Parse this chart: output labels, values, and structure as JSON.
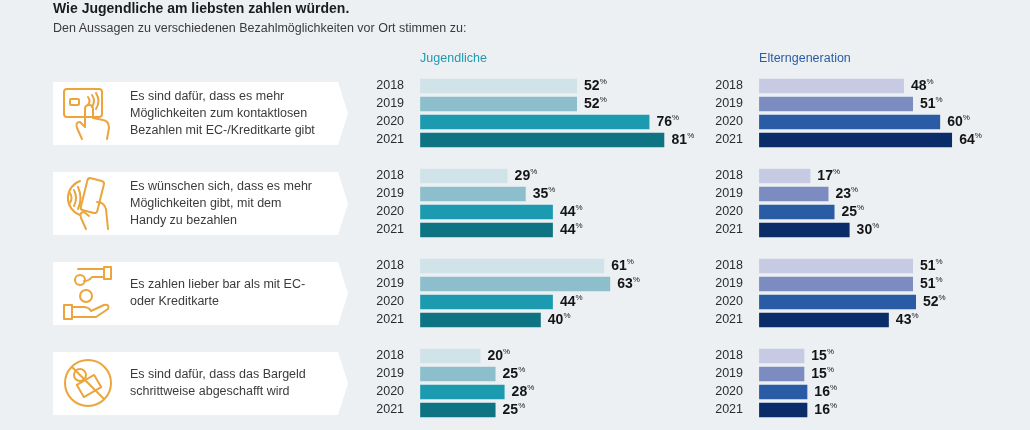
{
  "chart_data": [
    {
      "type": "other",
      "title": "Wie Jugendliche am liebsten zahlen würden.",
      "subtitle": "Den Aussagen zu verschiedenen Bezahlmöglichkeiten vor Ort stimmen zu:"
    },
    {
      "type": "bar",
      "orientation": "horizontal",
      "title": "Jugendliche",
      "categories": [
        "Es sind dafür, dass es mehr Möglichkeiten zum kontaktlosen Bezahlen mit EC-/Kreditkarte gibt",
        "Es wünschen sich, dass es mehr Möglichkeiten gibt, mit dem Handy zu bezahlen",
        "Es zahlen lieber bar als mit EC- oder Kreditkarte",
        "Es sind dafür, dass das Bargeld schrittweise abgeschafft wird"
      ],
      "tick_labels": "y",
      "series": [
        {
          "name": "2018",
          "color": "#cfe3e9",
          "values": [
            52,
            29,
            61,
            20
          ],
          "value_labels": [
            "52$^{%}$",
            "29$^{%}$",
            "61$^{%}$",
            "20$^{%}$"
          ]
        },
        {
          "name": "2019",
          "color": "#8cbfcb",
          "values": [
            52,
            35,
            63,
            25
          ],
          "value_labels": [
            "52$^{%}$",
            "35$^{%}$",
            "63$^{%}$",
            "25$^{%}$"
          ]
        },
        {
          "name": "2020",
          "color": "#1c9bb0",
          "values": [
            76,
            44,
            44,
            28
          ],
          "value_labels": [
            "76$^{%}$",
            "44$^{%}$",
            "44$^{%}$",
            "28$^{%}$"
          ]
        },
        {
          "name": "2021",
          "color": "#0e7383",
          "values": [
            81,
            44,
            40,
            25
          ],
          "value_labels": [
            "81$^{%}$",
            "44$^{%}$",
            "40$^{%}$",
            "25$^{%}$"
          ]
        }
      ]
    },
    {
      "type": "bar",
      "orientation": "horizontal",
      "title": "Elterngeneration",
      "categories": [
        null,
        null,
        null,
        null
      ],
      "tick_labels": false,
      "series": [
        {
          "name": "2018",
          "color": "#c6cae2",
          "values": [
            48,
            17,
            51,
            15
          ],
          "value_labels": [
            "48$^{%}$",
            "17$^{%}$",
            "51$^{%}$",
            "15$^{%}$"
          ]
        },
        {
          "name": "2019",
          "color": "#7d8cc0",
          "values": [
            51,
            23,
            51,
            15
          ],
          "value_labels": [
            "51$^{%}$",
            "23$^{%}$",
            "51$^{%}$",
            "15$^{%}$"
          ]
        },
        {
          "name": "2020",
          "color": "#2a5ca5",
          "values": [
            60,
            25,
            52,
            16
          ],
          "value_labels": [
            "60$^{%}$",
            "25$^{%}$",
            "52$^{%}$",
            "16$^{%}$"
          ]
        },
        {
          "name": "2021",
          "color": "#0a2d69",
          "values": [
            64,
            30,
            43,
            16
          ],
          "value_labels": [
            "64$^{%}$",
            "30$^{%}$",
            "43$^{%}$",
            "16$^{%}$"
          ]
        }
      ]
    }
  ]
}
